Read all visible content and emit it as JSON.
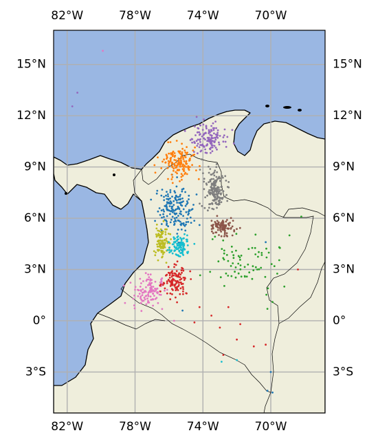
{
  "map": {
    "extent": {
      "lon_min": -82.8,
      "lon_max": -66.8,
      "lat_min": -5.4,
      "lat_max": 17.0
    },
    "gridlines": true,
    "colors": {
      "ocean": "#9ab7e3",
      "land": "#efeedc",
      "coastline": "#000000",
      "border": "#000000",
      "grid": "#b0b0b0"
    },
    "lon_ticks": [
      {
        "value": -82,
        "label": "82°W"
      },
      {
        "value": -78,
        "label": "78°W"
      },
      {
        "value": -74,
        "label": "74°W"
      },
      {
        "value": -70,
        "label": "70°W"
      }
    ],
    "lat_ticks": [
      {
        "value": 15,
        "label": "15°N"
      },
      {
        "value": 12,
        "label": "12°N"
      },
      {
        "value": 9,
        "label": "9°N"
      },
      {
        "value": 6,
        "label": "6°N"
      },
      {
        "value": 3,
        "label": "3°N"
      },
      {
        "value": 0,
        "label": "0°"
      },
      {
        "value": -3,
        "label": "3°S"
      }
    ],
    "clusters": [
      {
        "color": "#1f77b4",
        "centroid": [
          -75.7,
          6.5
        ],
        "spread": [
          0.85,
          1.1
        ],
        "count": 170
      },
      {
        "color": "#ff7f0e",
        "centroid": [
          -75.4,
          9.3
        ],
        "spread": [
          0.8,
          0.75
        ],
        "count": 150
      },
      {
        "color": "#9467bd",
        "centroid": [
          -73.6,
          10.6
        ],
        "spread": [
          0.8,
          0.7
        ],
        "count": 140
      },
      {
        "color": "#7f7f7f",
        "centroid": [
          -73.3,
          7.7
        ],
        "spread": [
          0.55,
          0.9
        ],
        "count": 170
      },
      {
        "color": "#8c564b",
        "centroid": [
          -72.8,
          5.5
        ],
        "spread": [
          0.65,
          0.45
        ],
        "count": 110
      },
      {
        "color": "#bcbd22",
        "centroid": [
          -76.4,
          4.6
        ],
        "spread": [
          0.35,
          0.8
        ],
        "count": 110
      },
      {
        "color": "#17becf",
        "centroid": [
          -75.4,
          4.4
        ],
        "spread": [
          0.5,
          0.55
        ],
        "count": 100
      },
      {
        "color": "#e377c2",
        "centroid": [
          -77.2,
          1.7
        ],
        "spread": [
          0.7,
          0.7
        ],
        "count": 120
      },
      {
        "color": "#d62728",
        "centroid": [
          -75.6,
          2.3
        ],
        "spread": [
          0.55,
          0.75
        ],
        "count": 110
      },
      {
        "color": "#2ca02c",
        "centroid": [
          -71.6,
          3.6
        ],
        "spread": [
          1.8,
          1.4
        ],
        "count": 70
      }
    ],
    "scattered_points": [
      {
        "color": "#9467bd",
        "lon": -81.7,
        "lat": 12.55
      },
      {
        "color": "#9467bd",
        "lon": -81.4,
        "lat": 13.35
      },
      {
        "color": "#e377c2",
        "lon": -79.9,
        "lat": 15.8
      },
      {
        "color": "#2ca02c",
        "lon": -68.2,
        "lat": 6.1
      },
      {
        "color": "#2ca02c",
        "lon": -69.5,
        "lat": 4.3
      },
      {
        "color": "#2ca02c",
        "lon": -68.9,
        "lat": 5.0
      },
      {
        "color": "#2ca02c",
        "lon": -69.9,
        "lat": 1.1
      },
      {
        "color": "#2ca02c",
        "lon": -70.2,
        "lat": 0.7
      },
      {
        "color": "#2ca02c",
        "lon": -69.2,
        "lat": 2.0
      },
      {
        "color": "#1f77b4",
        "lon": -70.3,
        "lat": 4.6
      },
      {
        "color": "#1f77b4",
        "lon": -70.2,
        "lat": -4.1
      },
      {
        "color": "#1f77b4",
        "lon": -69.9,
        "lat": -4.2
      },
      {
        "color": "#1f77b4",
        "lon": -70.0,
        "lat": -3.0
      },
      {
        "color": "#d62728",
        "lon": -73.0,
        "lat": -0.4
      },
      {
        "color": "#d62728",
        "lon": -72.0,
        "lat": -1.1
      },
      {
        "color": "#d62728",
        "lon": -71.0,
        "lat": -1.5
      },
      {
        "color": "#d62728",
        "lon": -70.3,
        "lat": -1.4
      },
      {
        "color": "#d62728",
        "lon": -72.5,
        "lat": 0.8
      },
      {
        "color": "#d62728",
        "lon": -71.8,
        "lat": -0.2
      },
      {
        "color": "#d62728",
        "lon": -74.5,
        "lat": -0.1
      },
      {
        "color": "#d62728",
        "lon": -73.5,
        "lat": 0.3
      },
      {
        "color": "#d62728",
        "lon": -72.8,
        "lat": -2.0
      },
      {
        "color": "#d62728",
        "lon": -74.2,
        "lat": 0.8
      },
      {
        "color": "#17becf",
        "lon": -72.9,
        "lat": -2.4
      },
      {
        "color": "#17becf",
        "lon": -72.0,
        "lat": -2.3
      },
      {
        "color": "#e377c2",
        "lon": -75.7,
        "lat": 0.0
      },
      {
        "color": "#1f77b4",
        "lon": -75.2,
        "lat": 0.6
      },
      {
        "color": "#d62728",
        "lon": -68.4,
        "lat": 3.0
      },
      {
        "color": "#2ca02c",
        "lon": -70.8,
        "lat": 3.0
      }
    ]
  }
}
